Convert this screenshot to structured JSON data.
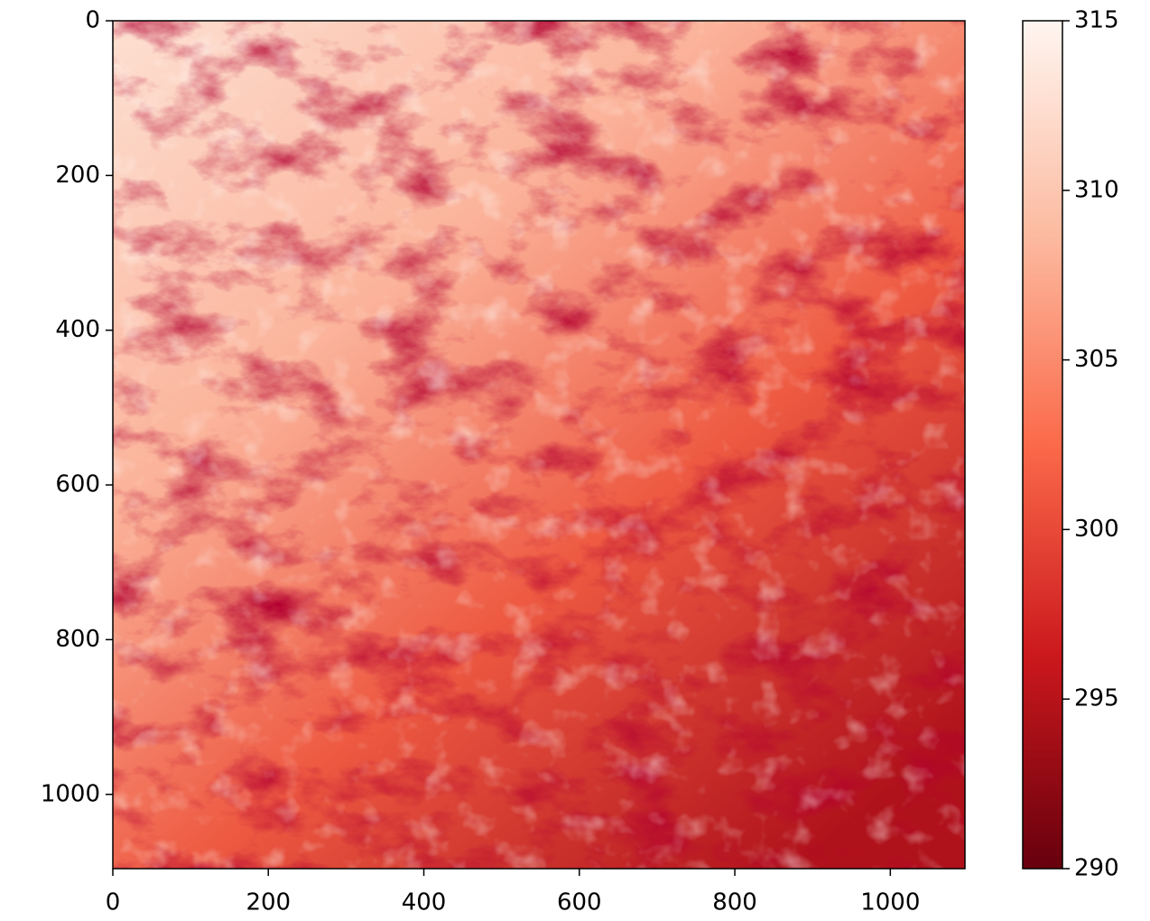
{
  "chart_data": {
    "type": "heatmap",
    "xlim": [
      0,
      1096
    ],
    "xticks": [
      0,
      200,
      400,
      600,
      800,
      1000
    ],
    "ylim": [
      1096,
      0
    ],
    "yticks": [
      0,
      200,
      400,
      600,
      800,
      1000
    ],
    "colorbar": {
      "lim": [
        290,
        315
      ],
      "ticks": [
        290,
        295,
        300,
        305,
        310,
        315
      ],
      "colormap": [
        "#67000d",
        "#cb181d",
        "#fb6a4a",
        "#fcbba1",
        "#fff5f0"
      ]
    }
  }
}
